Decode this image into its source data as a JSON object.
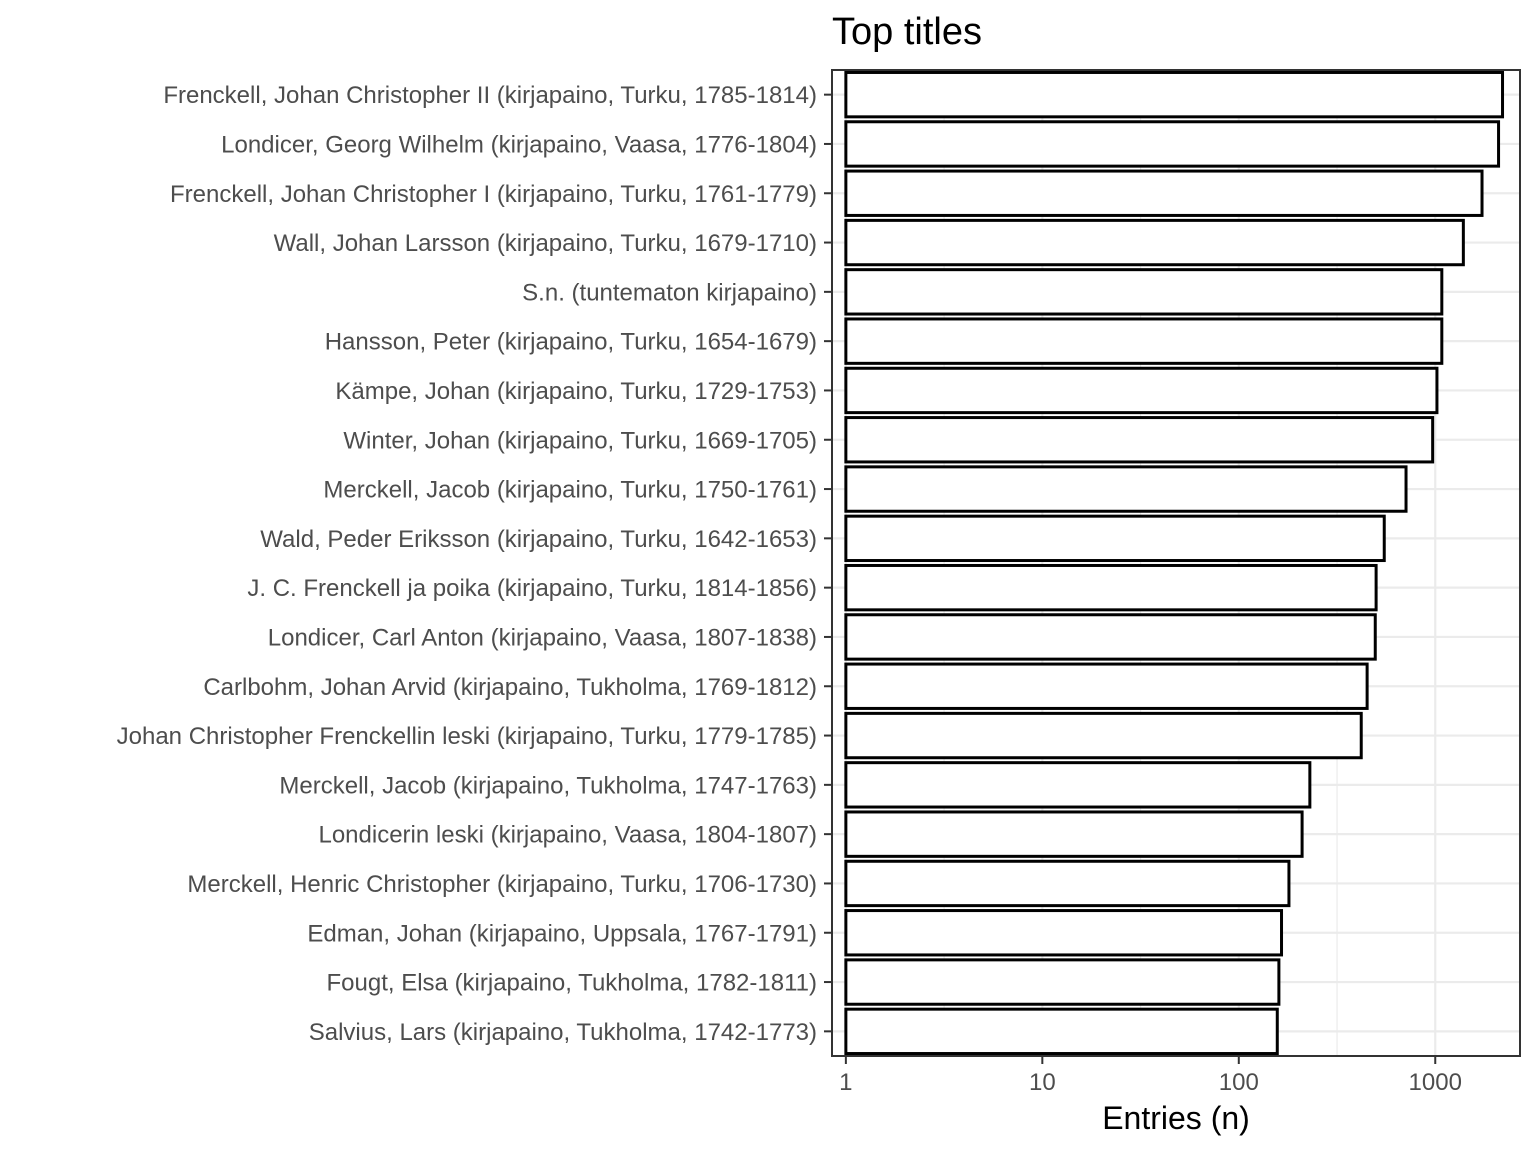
{
  "chart_data": {
    "type": "bar",
    "orientation": "horizontal",
    "title": "Top titles",
    "xlabel": "Entries (n)",
    "ylabel": "",
    "x_scale": "log10",
    "xlim": [
      0.85,
      2700
    ],
    "x_ticks": [
      1,
      10,
      100,
      1000
    ],
    "x_tick_labels": [
      "1",
      "10",
      "100",
      "1000"
    ],
    "grid": true,
    "colors": {
      "bar_fill": "#ffffff",
      "bar_stroke": "#000000",
      "grid": "#ebebeb",
      "panel_border": "#333333"
    },
    "categories": [
      "Frenckell, Johan Christopher II (kirjapaino, Turku, 1785-1814)",
      "Londicer, Georg Wilhelm (kirjapaino, Vaasa, 1776-1804)",
      "Frenckell, Johan Christopher I (kirjapaino, Turku, 1761-1779)",
      "Wall, Johan Larsson (kirjapaino, Turku, 1679-1710)",
      "S.n. (tuntematon kirjapaino)",
      "Hansson, Peter (kirjapaino, Turku, 1654-1679)",
      "Kämpe, Johan (kirjapaino, Turku, 1729-1753)",
      "Winter, Johan (kirjapaino, Turku, 1669-1705)",
      "Merckell, Jacob (kirjapaino, Turku, 1750-1761)",
      "Wald, Peder Eriksson (kirjapaino, Turku, 1642-1653)",
      "J. C. Frenckell ja poika (kirjapaino, Turku, 1814-1856)",
      "Londicer, Carl Anton (kirjapaino, Vaasa, 1807-1838)",
      "Carlbohm, Johan Arvid (kirjapaino, Tukholma, 1769-1812)",
      "Johan Christopher Frenckellin leski (kirjapaino, Turku, 1779-1785)",
      "Merckell, Jacob (kirjapaino, Tukholma, 1747-1763)",
      "Londicerin leski (kirjapaino, Vaasa, 1804-1807)",
      "Merckell, Henric Christopher (kirjapaino, Turku, 1706-1730)",
      "Edman, Johan (kirjapaino, Uppsala, 1767-1791)",
      "Fougt, Elsa (kirjapaino, Tukholma, 1782-1811)",
      "Salvius, Lars (kirjapaino, Tukholma, 1742-1773)"
    ],
    "values": [
      2200,
      2100,
      1730,
      1390,
      1080,
      1080,
      1020,
      970,
      710,
      550,
      500,
      495,
      450,
      420,
      230,
      210,
      180,
      165,
      160,
      157
    ]
  }
}
